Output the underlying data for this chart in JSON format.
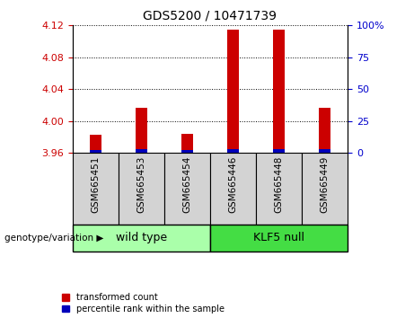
{
  "title": "GDS5200 / 10471739",
  "samples": [
    "GSM665451",
    "GSM665453",
    "GSM665454",
    "GSM665446",
    "GSM665448",
    "GSM665449"
  ],
  "red_values": [
    3.983,
    4.016,
    3.984,
    4.115,
    4.115,
    4.016
  ],
  "blue_values": [
    2.0,
    2.5,
    2.0,
    3.0,
    3.0,
    2.5
  ],
  "red_baseline": 3.96,
  "ylim_left": [
    3.96,
    4.12
  ],
  "ylim_right": [
    0,
    100
  ],
  "left_ticks": [
    3.96,
    4.0,
    4.04,
    4.08,
    4.12
  ],
  "right_ticks": [
    0,
    25,
    50,
    75,
    100
  ],
  "right_tick_labels": [
    "0",
    "25",
    "50",
    "75",
    "100%"
  ],
  "groups": [
    {
      "label": "wild type",
      "color": "#AAFFAA",
      "start": 0,
      "end": 3
    },
    {
      "label": "KLF5 null",
      "color": "#44DD44",
      "start": 3,
      "end": 6
    }
  ],
  "red_color": "#CC0000",
  "blue_color": "#0000BB",
  "legend_red": "transformed count",
  "legend_blue": "percentile rank within the sample",
  "genotype_label": "genotype/variation",
  "bg_plot": "#FFFFFF",
  "bg_labels": "#D3D3D3",
  "title_fontsize": 10,
  "tick_fontsize": 8,
  "bar_width": 0.25
}
